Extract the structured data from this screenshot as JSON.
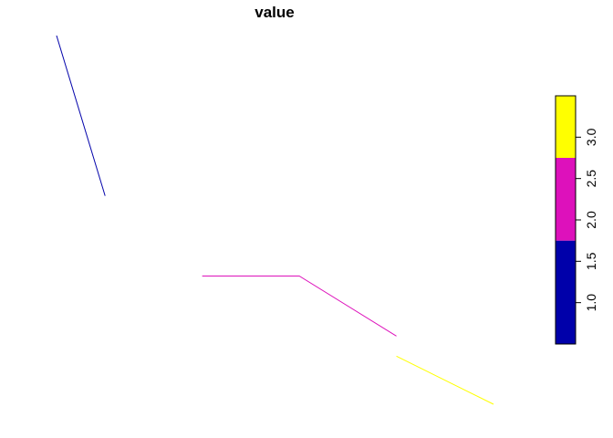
{
  "chart_data": {
    "type": "line",
    "title": "value",
    "series": [
      {
        "color": "#0000AA",
        "value": 1,
        "points": [
          [
            0.0,
            1.0
          ],
          [
            0.5,
            0.6
          ]
        ]
      },
      {
        "color": "#DD11BB",
        "value": 2,
        "points": [
          [
            1.5,
            0.4
          ],
          [
            2.5,
            0.4
          ],
          [
            3.5,
            0.25
          ]
        ]
      },
      {
        "color": "#FFFF00",
        "value": 3,
        "points": [
          [
            3.5,
            0.2
          ],
          [
            4.5,
            0.08
          ]
        ]
      }
    ],
    "xlim": [
      0.0,
      4.5
    ],
    "ylim": [
      0.08,
      1.0
    ],
    "axes_shown": false,
    "legend": {
      "placement": "right",
      "segments": [
        {
          "from": 0.5,
          "to": 1.75,
          "color": "#0000AA"
        },
        {
          "from": 1.75,
          "to": 2.75,
          "color": "#DD11BB"
        },
        {
          "from": 2.75,
          "to": 3.5,
          "color": "#FFFF00"
        }
      ],
      "range": [
        0.5,
        3.5
      ],
      "ticks": [
        "1.0",
        "1.5",
        "2.0",
        "2.5",
        "3.0"
      ]
    }
  }
}
